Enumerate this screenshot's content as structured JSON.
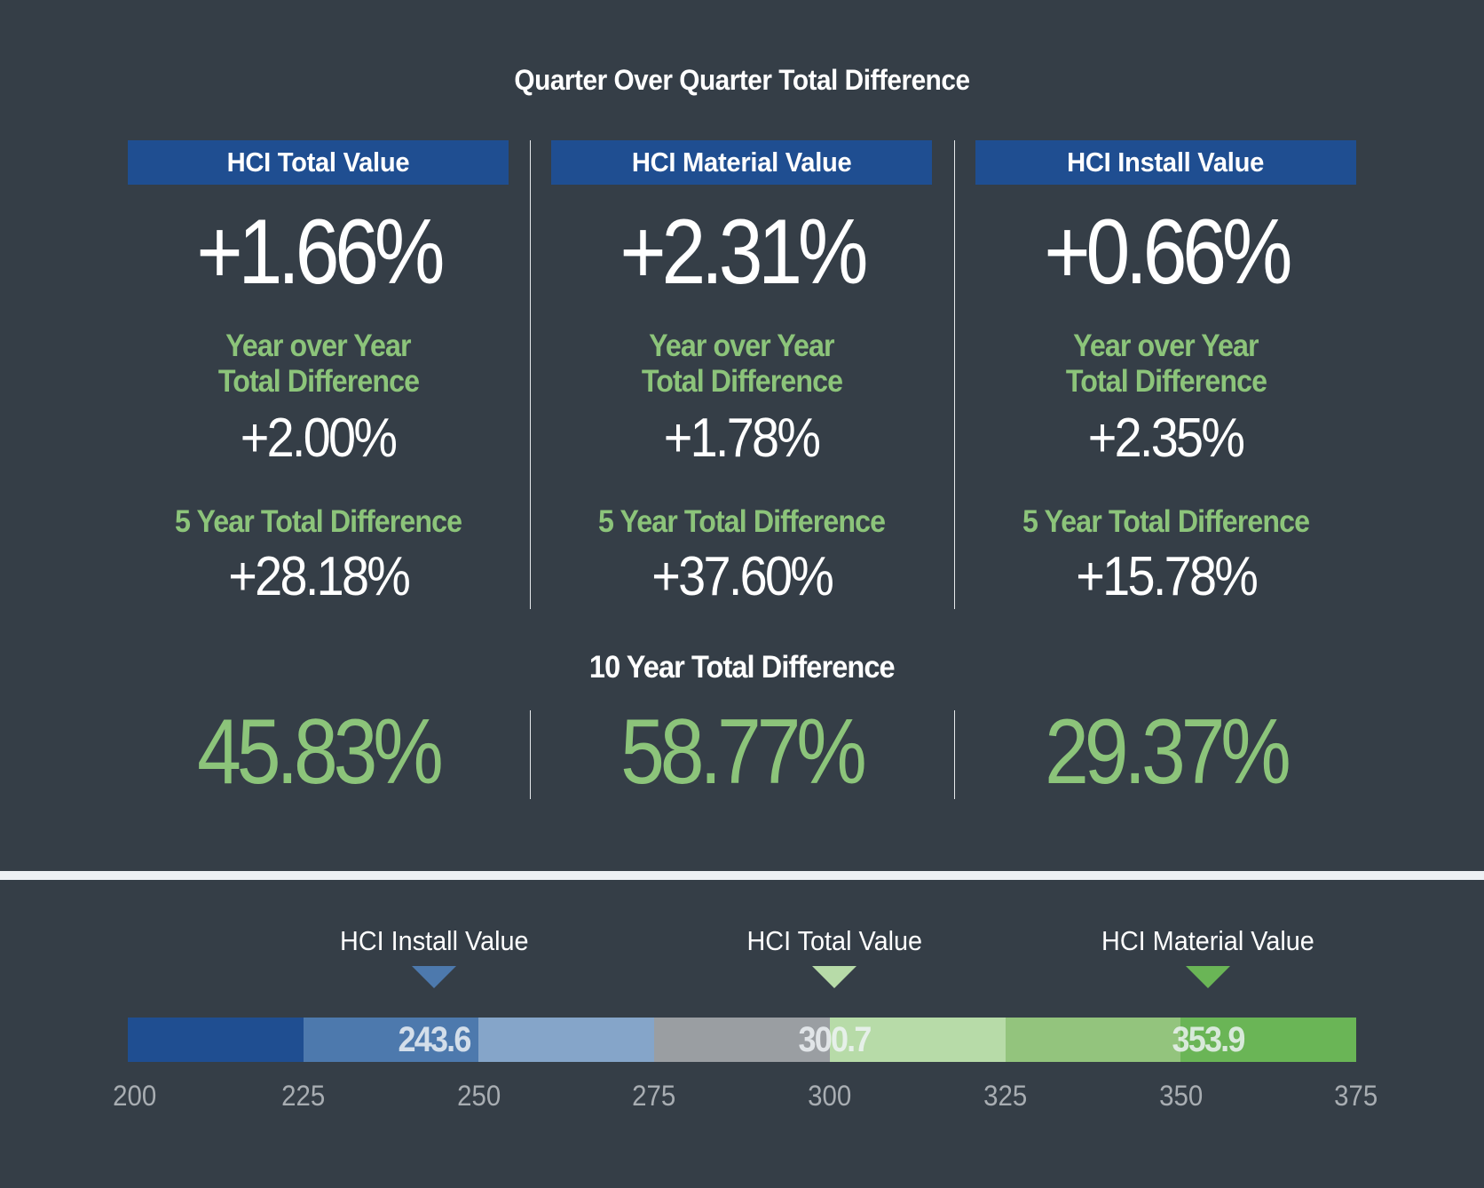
{
  "title": "Quarter Over Quarter Total Difference",
  "columns": [
    {
      "header": "HCI Total Value",
      "qoq": "+1.66%",
      "yoy_label_line1": "Year over Year",
      "yoy_label_line2": "Total Difference",
      "yoy": "+2.00%",
      "five_year_label": "5 Year Total Difference",
      "five_year": "+28.18%",
      "ten_year": "45.83%"
    },
    {
      "header": "HCI Material Value",
      "qoq": "+2.31%",
      "yoy_label_line1": "Year over Year",
      "yoy_label_line2": "Total Difference",
      "yoy": "+1.78%",
      "five_year_label": "5 Year Total Difference",
      "five_year": "+37.60%",
      "ten_year": "58.77%"
    },
    {
      "header": "HCI Install Value",
      "qoq": "+0.66%",
      "yoy_label_line1": "Year over Year",
      "yoy_label_line2": "Total Difference",
      "yoy": "+2.35%",
      "five_year_label": "5 Year Total Difference",
      "five_year": "+15.78%",
      "ten_year": "29.37%"
    }
  ],
  "ten_year_title": "10 Year Total Difference",
  "colors": {
    "background": "#353e47",
    "header_blue": "#1f4e91",
    "accent_green": "#8cc47a",
    "band": "#edf1f4"
  },
  "chart_data": {
    "type": "bar",
    "title": "",
    "xlabel": "",
    "ylabel": "",
    "xlim": [
      200,
      375
    ],
    "ticks": [
      200,
      225,
      250,
      275,
      300,
      325,
      350,
      375
    ],
    "tick_labels": [
      "200",
      "225",
      "250",
      "275",
      "300",
      "325",
      "350",
      "375"
    ],
    "segments": [
      {
        "from": 200,
        "to": 225,
        "color": "#1f4e91"
      },
      {
        "from": 225,
        "to": 250,
        "color": "#4d79ad"
      },
      {
        "from": 250,
        "to": 275,
        "color": "#85a5c9"
      },
      {
        "from": 275,
        "to": 300,
        "color": "#9a9ea2"
      },
      {
        "from": 300,
        "to": 325,
        "color": "#b7dba8"
      },
      {
        "from": 325,
        "to": 350,
        "color": "#93c47d"
      },
      {
        "from": 350,
        "to": 375,
        "color": "#6ab556"
      }
    ],
    "markers": [
      {
        "name": "HCI Install Value",
        "value": 243.6,
        "label": "243.6",
        "color": "#4d79ad"
      },
      {
        "name": "HCI Total Value",
        "value": 300.7,
        "label": "300.7",
        "color": "#b7dba8"
      },
      {
        "name": "HCI Material Value",
        "value": 353.9,
        "label": "353.9",
        "color": "#6ab556"
      }
    ]
  }
}
